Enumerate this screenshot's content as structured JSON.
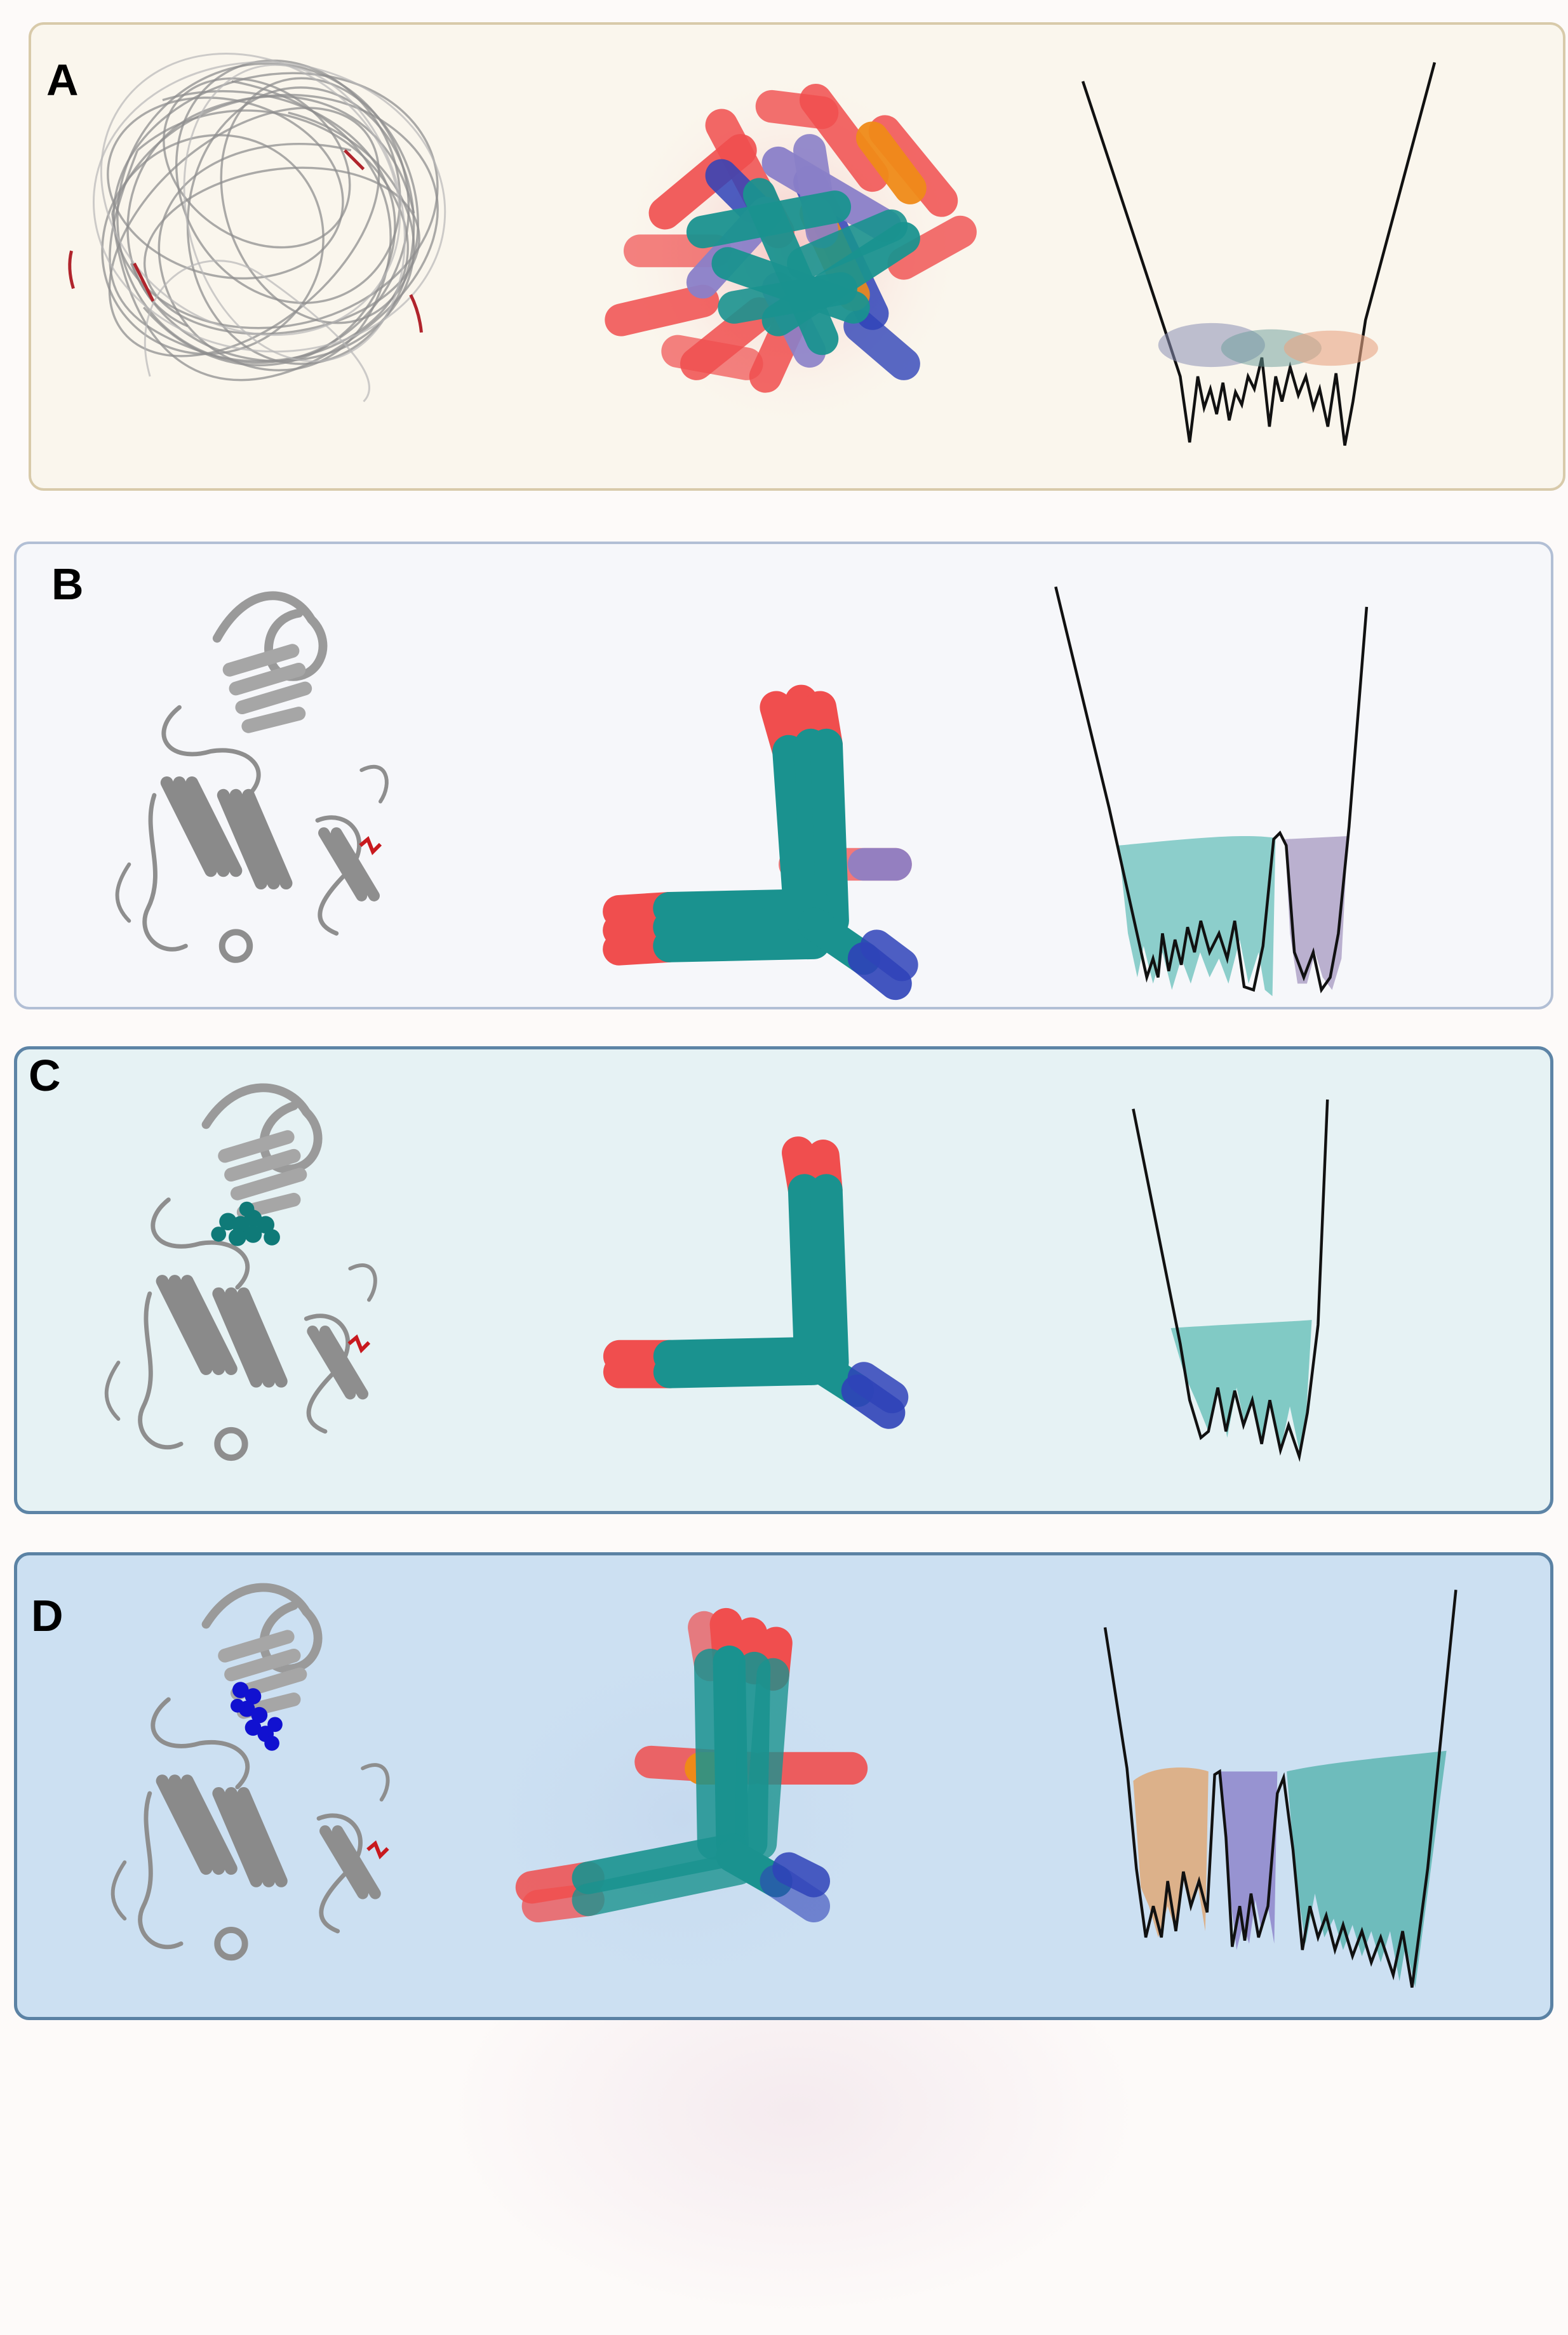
{
  "panels": [
    {
      "id": "A",
      "label": "A"
    },
    {
      "id": "B",
      "label": "B"
    },
    {
      "id": "C",
      "label": "C"
    },
    {
      "id": "D",
      "label": "D"
    }
  ],
  "colors": {
    "carbon": "#1a928f",
    "oxygen": "#f04e4e",
    "nitrogen": "#2f43b8",
    "sulfur": "#ef8a18",
    "purple_basin": "#8a80c8",
    "teal_basin": "#5fbcb6",
    "orange_basin": "#e0a56f",
    "lavender_basin": "#a598c0",
    "protein_gray": "#8e8e8e",
    "mutation_red": "#c8191e",
    "ligand_teal": "#0f7a78",
    "ligand_blue": "#1111d0"
  }
}
